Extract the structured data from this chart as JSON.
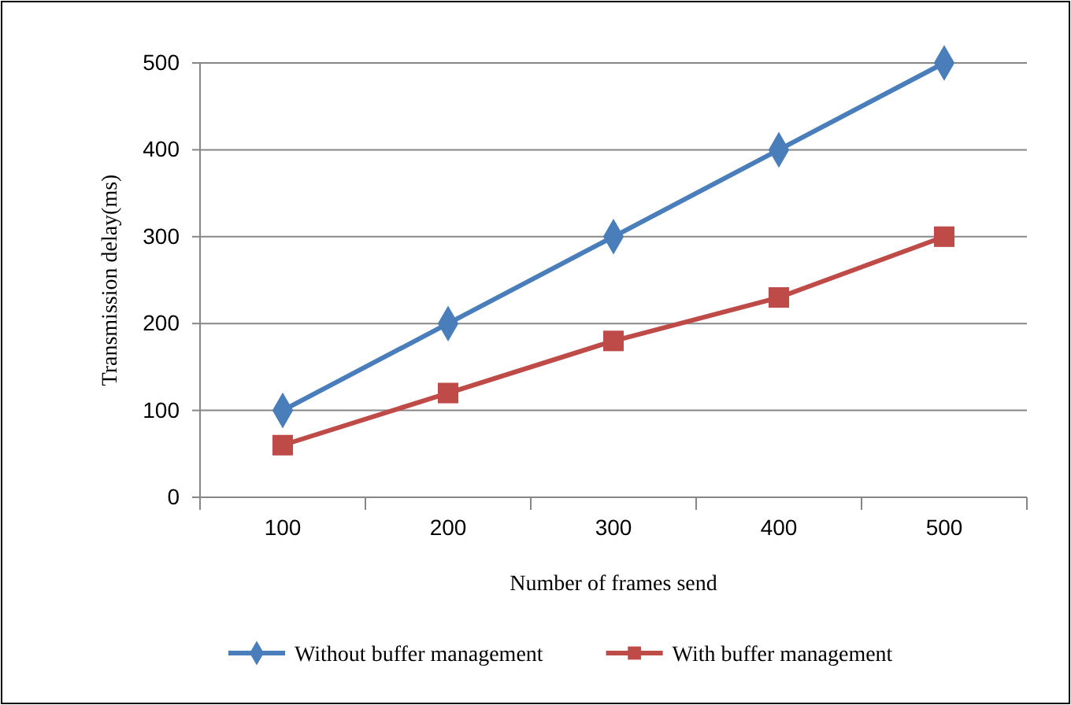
{
  "chart_data": {
    "type": "line",
    "xlabel": "Number of frames send",
    "ylabel": "Transmission delay(ms)",
    "categories": [
      "100",
      "200",
      "300",
      "400",
      "500"
    ],
    "series": [
      {
        "name": "Without buffer management",
        "color": "#4a7ebb",
        "marker": "diamond",
        "values": [
          100,
          200,
          300,
          400,
          500
        ]
      },
      {
        "name": "With buffer management",
        "color": "#be4b48",
        "marker": "square",
        "values": [
          60,
          120,
          180,
          230,
          300
        ]
      }
    ],
    "ylim": [
      0,
      500
    ],
    "yticks": [
      0,
      100,
      200,
      300,
      400,
      500
    ],
    "grid": "y",
    "legend": "bottom"
  }
}
